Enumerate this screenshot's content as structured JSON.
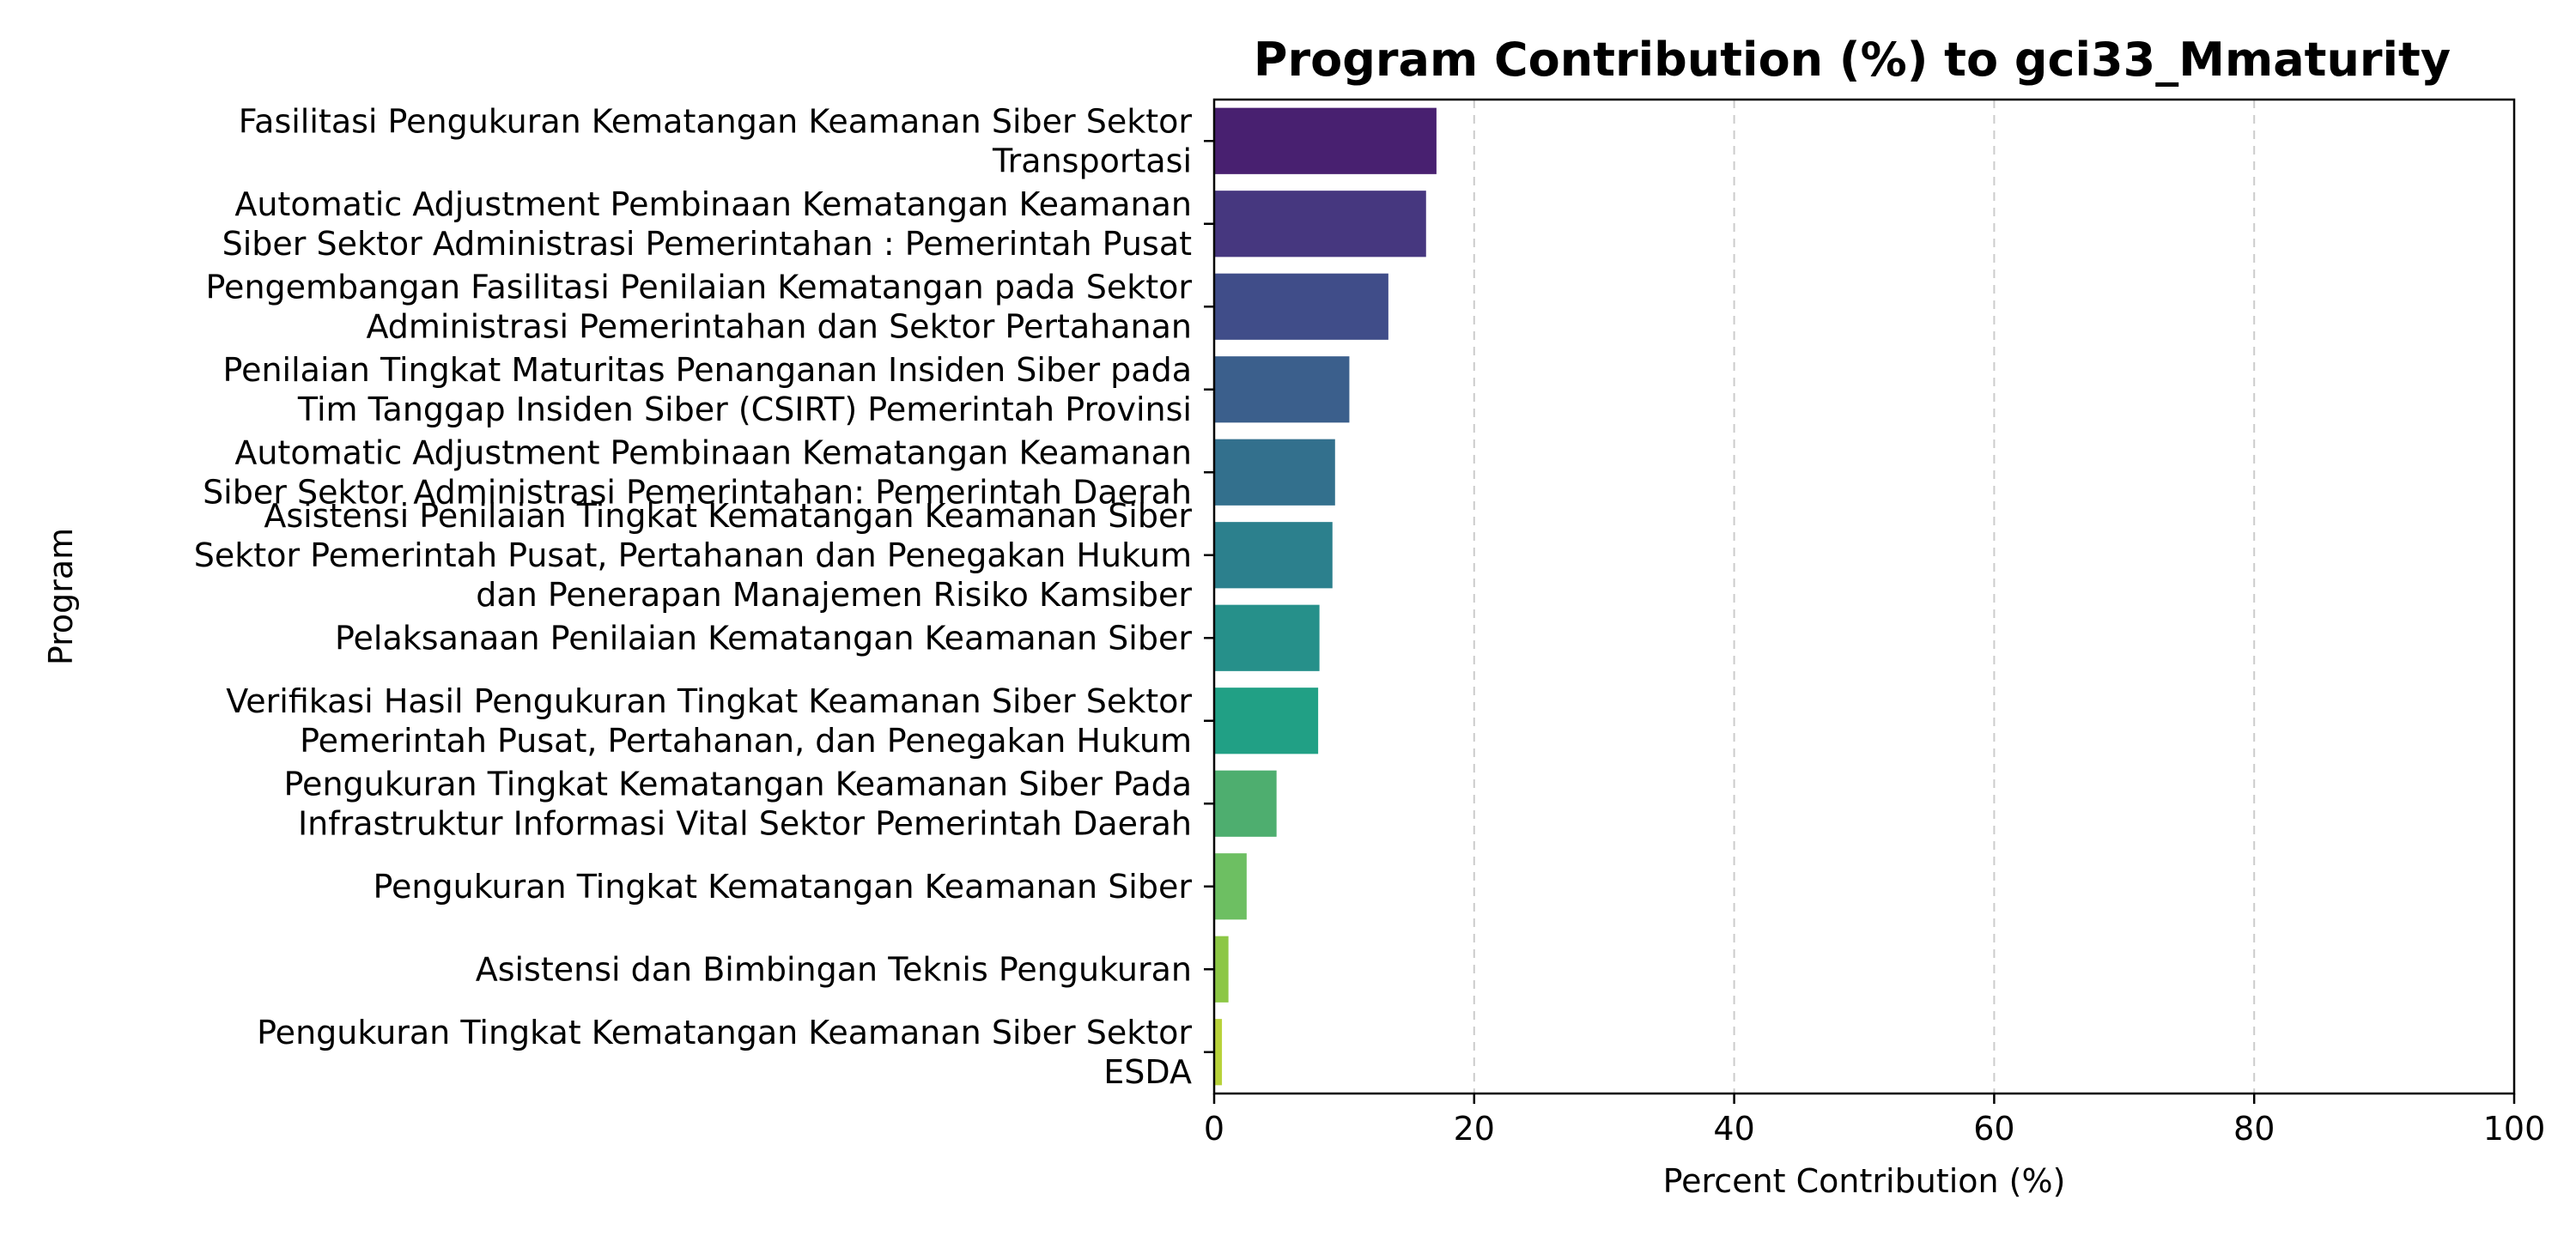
{
  "chart_data": {
    "type": "bar",
    "orientation": "horizontal",
    "title": "Program Contribution (%) to gci33_Mmaturity",
    "xlabel": "Percent Contribution (%)",
    "ylabel": "Program",
    "xlim": [
      0,
      100
    ],
    "xticks": [
      0,
      20,
      40,
      60,
      80,
      100
    ],
    "grid": "x-dashed",
    "categories": [
      [
        "Fasilitasi Pengukuran Kematangan Keamanan Siber Sektor",
        "Transportasi"
      ],
      [
        "Automatic Adjustment Pembinaan Kematangan Keamanan",
        "Siber Sektor Administrasi Pemerintahan : Pemerintah Pusat"
      ],
      [
        "Pengembangan Fasilitasi Penilaian Kematangan pada Sektor",
        "Administrasi Pemerintahan dan Sektor Pertahanan"
      ],
      [
        "Penilaian Tingkat Maturitas Penanganan Insiden Siber pada",
        "Tim Tanggap Insiden Siber (CSIRT) Pemerintah Provinsi"
      ],
      [
        "Automatic Adjustment Pembinaan Kematangan Keamanan",
        "Siber Sektor Administrasi Pemerintahan: Pemerintah Daerah"
      ],
      [
        "Asistensi Penilaian Tingkat Kematangan Keamanan Siber",
        "Sektor Pemerintah Pusat, Pertahanan dan Penegakan Hukum",
        "dan Penerapan Manajemen Risiko Kamsiber"
      ],
      [
        "Pelaksanaan Penilaian Kematangan Keamanan Siber"
      ],
      [
        "Verifikasi Hasil Pengukuran Tingkat Keamanan Siber Sektor",
        "Pemerintah Pusat, Pertahanan, dan Penegakan Hukum"
      ],
      [
        "Pengukuran Tingkat Kematangan Keamanan Siber Pada",
        "Infrastruktur Informasi Vital Sektor Pemerintah Daerah"
      ],
      [
        "Pengukuran Tingkat Kematangan Keamanan Siber"
      ],
      [
        "Asistensi dan Bimbingan Teknis Pengukuran"
      ],
      [
        "Pengukuran Tingkat Kematangan Keamanan Siber Sektor",
        "ESDA"
      ]
    ],
    "values": [
      17.1,
      16.3,
      13.4,
      10.4,
      9.3,
      9.1,
      8.1,
      8.0,
      4.8,
      2.5,
      1.1,
      0.6
    ],
    "colors": [
      "#482070",
      "#46377f",
      "#404d89",
      "#3b5f8c",
      "#33708d",
      "#2c808d",
      "#26908a",
      "#21a085",
      "#4eae6f",
      "#6dbf62",
      "#8cc745",
      "#b8d23a"
    ]
  }
}
